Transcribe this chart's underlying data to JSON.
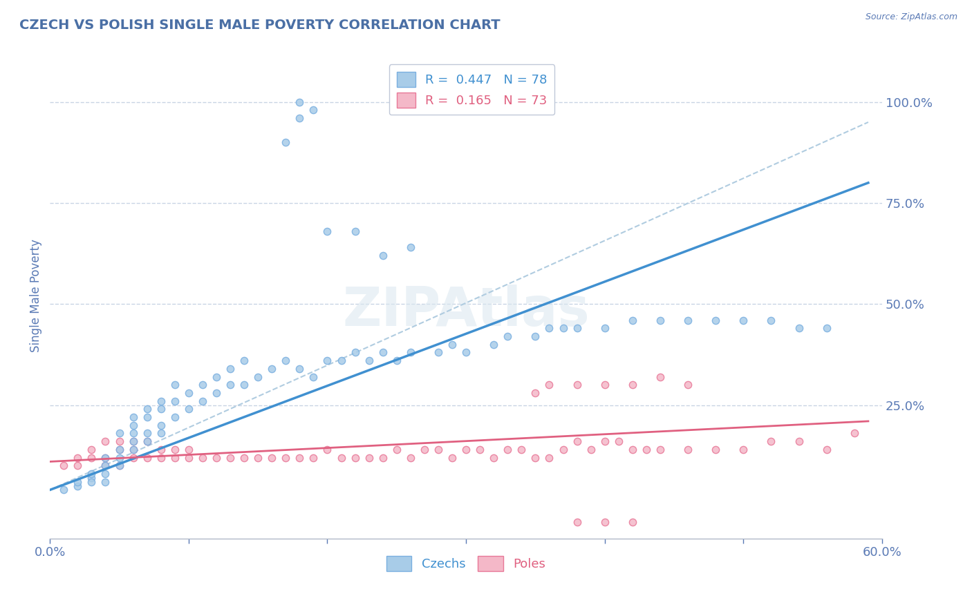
{
  "title": "CZECH VS POLISH SINGLE MALE POVERTY CORRELATION CHART",
  "source": "Source: ZipAtlas.com",
  "ylabel": "Single Male Poverty",
  "xlim": [
    0.0,
    0.6
  ],
  "ylim": [
    -0.08,
    1.12
  ],
  "czech_R": 0.447,
  "czech_N": 78,
  "polish_R": 0.165,
  "polish_N": 73,
  "czech_color": "#a8cce8",
  "polish_color": "#f4b8c8",
  "czech_edge_color": "#7aafe0",
  "polish_edge_color": "#e87898",
  "czech_line_color": "#4090d0",
  "polish_line_color": "#e06080",
  "dashed_line_color": "#b0cce0",
  "watermark": "ZIPAtlas",
  "background_color": "#ffffff",
  "grid_color": "#c8d4e4",
  "title_color": "#4a6fa5",
  "axis_label_color": "#5a7ab5",
  "tick_label_color": "#5a7ab5",
  "legend_border_color": "#c0c8d8",
  "czech_scatter_x": [
    0.01,
    0.02,
    0.02,
    0.03,
    0.03,
    0.03,
    0.04,
    0.04,
    0.04,
    0.04,
    0.05,
    0.05,
    0.05,
    0.05,
    0.06,
    0.06,
    0.06,
    0.06,
    0.06,
    0.07,
    0.07,
    0.07,
    0.07,
    0.08,
    0.08,
    0.08,
    0.08,
    0.09,
    0.09,
    0.09,
    0.1,
    0.1,
    0.11,
    0.11,
    0.12,
    0.12,
    0.13,
    0.13,
    0.14,
    0.14,
    0.15,
    0.16,
    0.17,
    0.18,
    0.19,
    0.2,
    0.21,
    0.22,
    0.23,
    0.24,
    0.25,
    0.26,
    0.28,
    0.29,
    0.3,
    0.32,
    0.33,
    0.35,
    0.36,
    0.37,
    0.38,
    0.4,
    0.42,
    0.44,
    0.46,
    0.48,
    0.5,
    0.52,
    0.54,
    0.56,
    0.24,
    0.26,
    0.2,
    0.22,
    0.17,
    0.18,
    0.18,
    0.19
  ],
  "czech_scatter_y": [
    0.04,
    0.05,
    0.06,
    0.07,
    0.06,
    0.08,
    0.06,
    0.08,
    0.1,
    0.12,
    0.1,
    0.12,
    0.14,
    0.18,
    0.14,
    0.16,
    0.18,
    0.2,
    0.22,
    0.16,
    0.18,
    0.22,
    0.24,
    0.18,
    0.2,
    0.24,
    0.26,
    0.22,
    0.26,
    0.3,
    0.24,
    0.28,
    0.26,
    0.3,
    0.28,
    0.32,
    0.3,
    0.34,
    0.3,
    0.36,
    0.32,
    0.34,
    0.36,
    0.34,
    0.32,
    0.36,
    0.36,
    0.38,
    0.36,
    0.38,
    0.36,
    0.38,
    0.38,
    0.4,
    0.38,
    0.4,
    0.42,
    0.42,
    0.44,
    0.44,
    0.44,
    0.44,
    0.46,
    0.46,
    0.46,
    0.46,
    0.46,
    0.46,
    0.44,
    0.44,
    0.62,
    0.64,
    0.68,
    0.68,
    0.9,
    0.96,
    1.0,
    0.98
  ],
  "polish_scatter_x": [
    0.01,
    0.02,
    0.02,
    0.03,
    0.03,
    0.04,
    0.04,
    0.04,
    0.05,
    0.05,
    0.05,
    0.06,
    0.06,
    0.06,
    0.07,
    0.07,
    0.08,
    0.08,
    0.09,
    0.09,
    0.1,
    0.1,
    0.11,
    0.12,
    0.13,
    0.14,
    0.15,
    0.16,
    0.17,
    0.18,
    0.19,
    0.2,
    0.21,
    0.22,
    0.23,
    0.24,
    0.25,
    0.26,
    0.27,
    0.28,
    0.29,
    0.3,
    0.31,
    0.32,
    0.33,
    0.34,
    0.35,
    0.36,
    0.37,
    0.38,
    0.39,
    0.4,
    0.41,
    0.42,
    0.43,
    0.44,
    0.46,
    0.48,
    0.5,
    0.52,
    0.54,
    0.56,
    0.58,
    0.35,
    0.36,
    0.38,
    0.4,
    0.42,
    0.44,
    0.46,
    0.38,
    0.4,
    0.42
  ],
  "polish_scatter_y": [
    0.1,
    0.1,
    0.12,
    0.12,
    0.14,
    0.1,
    0.12,
    0.16,
    0.1,
    0.14,
    0.16,
    0.12,
    0.14,
    0.16,
    0.12,
    0.16,
    0.12,
    0.14,
    0.12,
    0.14,
    0.12,
    0.14,
    0.12,
    0.12,
    0.12,
    0.12,
    0.12,
    0.12,
    0.12,
    0.12,
    0.12,
    0.14,
    0.12,
    0.12,
    0.12,
    0.12,
    0.14,
    0.12,
    0.14,
    0.14,
    0.12,
    0.14,
    0.14,
    0.12,
    0.14,
    0.14,
    0.12,
    0.12,
    0.14,
    0.16,
    0.14,
    0.16,
    0.16,
    0.14,
    0.14,
    0.14,
    0.14,
    0.14,
    0.14,
    0.16,
    0.16,
    0.14,
    0.18,
    0.28,
    0.3,
    0.3,
    0.3,
    0.3,
    0.32,
    0.3,
    -0.04,
    -0.04,
    -0.04
  ],
  "czech_trend_x": [
    0.0,
    0.59
  ],
  "czech_trend_y": [
    0.04,
    0.8
  ],
  "polish_trend_x": [
    0.0,
    0.59
  ],
  "polish_trend_y": [
    0.11,
    0.21
  ],
  "dashed_trend_x": [
    0.0,
    0.59
  ],
  "dashed_trend_y": [
    0.04,
    0.95
  ],
  "figsize": [
    14.06,
    8.92
  ],
  "dpi": 100
}
